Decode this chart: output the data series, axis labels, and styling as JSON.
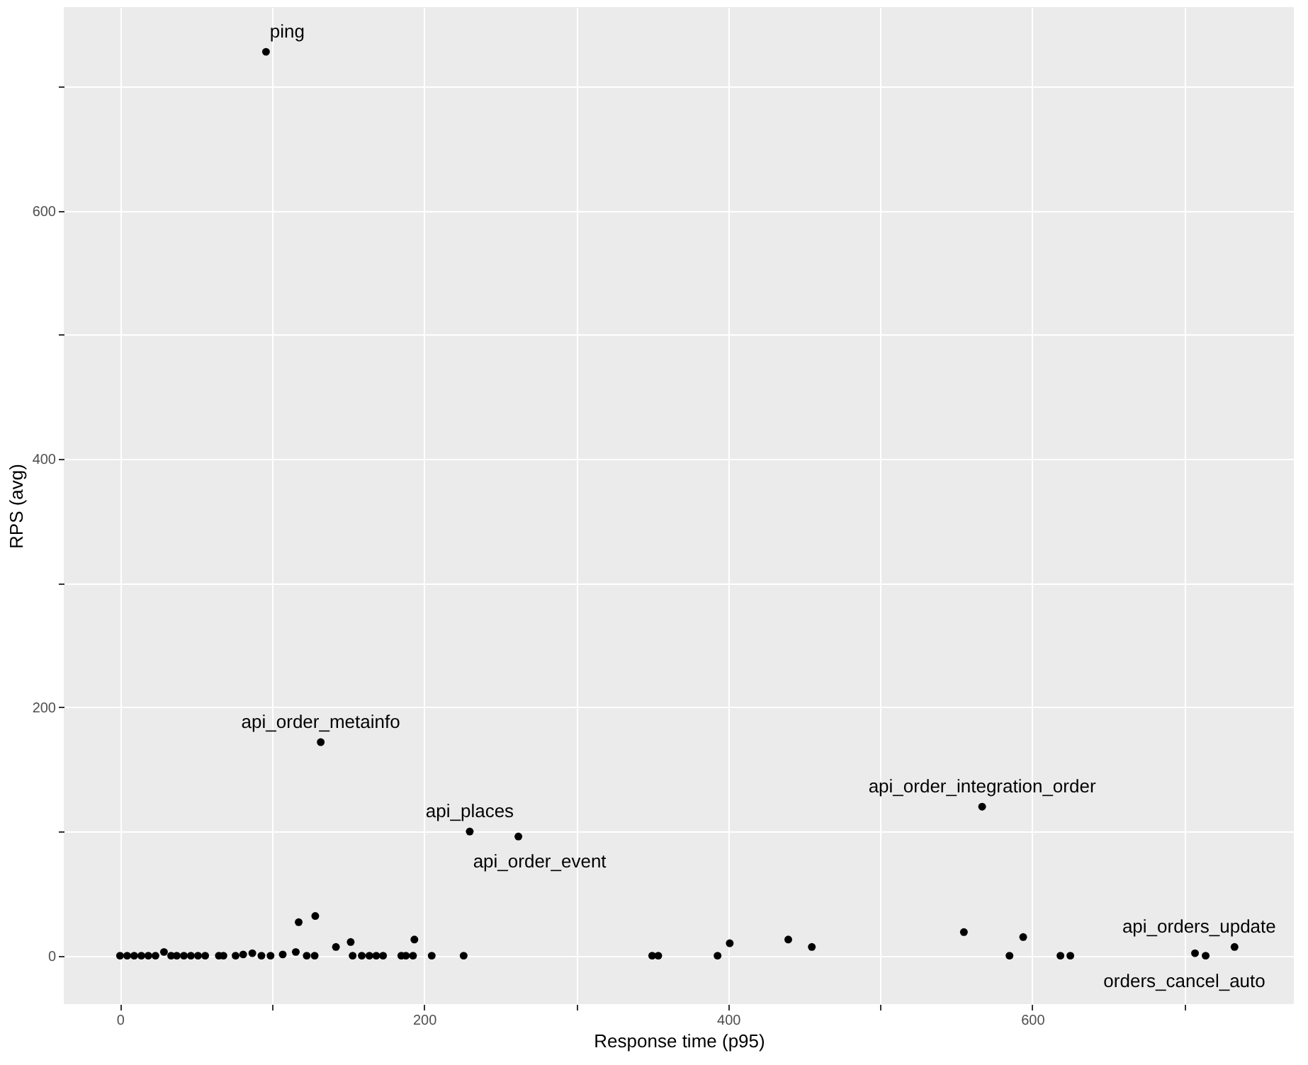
{
  "chart_data": {
    "type": "scatter",
    "xlabel": "Response time (p95)",
    "ylabel": "RPS (avg)",
    "xlim": [
      -37,
      772
    ],
    "ylim": [
      -39,
      764
    ],
    "xticks": [
      0,
      {
        "value": 100,
        "label": null
      },
      200,
      {
        "value": 300,
        "label": null
      },
      400,
      {
        "value": 500,
        "label": null
      },
      600,
      {
        "value": 700,
        "label": null
      }
    ],
    "yticks": [
      0,
      {
        "value": 100,
        "label": null
      },
      200,
      {
        "value": 300,
        "label": null
      },
      400,
      {
        "value": 500,
        "label": null
      },
      600,
      {
        "value": 700,
        "label": null
      }
    ],
    "grid": true,
    "marker": "circle",
    "series": [
      {
        "color": "#000000",
        "x": [
          0,
          4.7,
          9.3,
          14,
          18.6,
          23.3,
          28.9,
          33.6,
          37.3,
          42,
          46.6,
          51.3,
          56,
          65,
          68,
          76,
          81,
          87,
          93,
          99,
          107,
          115.6,
          117.5,
          122.8,
          128,
          128.4,
          142,
          151.7,
          153,
          159,
          164,
          168.5,
          173,
          185,
          188,
          192.7,
          193.6,
          205,
          226,
          350,
          354,
          393,
          401,
          439.5,
          455,
          555,
          585,
          594,
          618.5,
          625,
          707,
          714,
          733,
          96,
          132,
          230,
          262,
          567
        ],
        "values": [
          0,
          0,
          0,
          0,
          0,
          0,
          3,
          0,
          0,
          0,
          0,
          0,
          0,
          0,
          0,
          0,
          1,
          2,
          0,
          0,
          1,
          3,
          27,
          0,
          0,
          32,
          7,
          11,
          0,
          0,
          0,
          0,
          0,
          0,
          0,
          0,
          13,
          0,
          0,
          0,
          0,
          0,
          10,
          13,
          7,
          19,
          0,
          15,
          0,
          0,
          2,
          0,
          7,
          728,
          172,
          100,
          96,
          120
        ]
      }
    ],
    "annotations": [
      {
        "text": "ping",
        "x": 96,
        "y": 728
      },
      {
        "text": "api_order_metainfo",
        "x": 132,
        "y": 172
      },
      {
        "text": "api_places",
        "x": 230,
        "y": 100
      },
      {
        "text": "api_order_event",
        "x": 262,
        "y": 96
      },
      {
        "text": "api_order_integration_order",
        "x": 567,
        "y": 120
      },
      {
        "text": "api_orders_update",
        "x": 733,
        "y": 7
      },
      {
        "text": "orders_cancel_auto",
        "x": 714,
        "y": 0
      }
    ]
  }
}
